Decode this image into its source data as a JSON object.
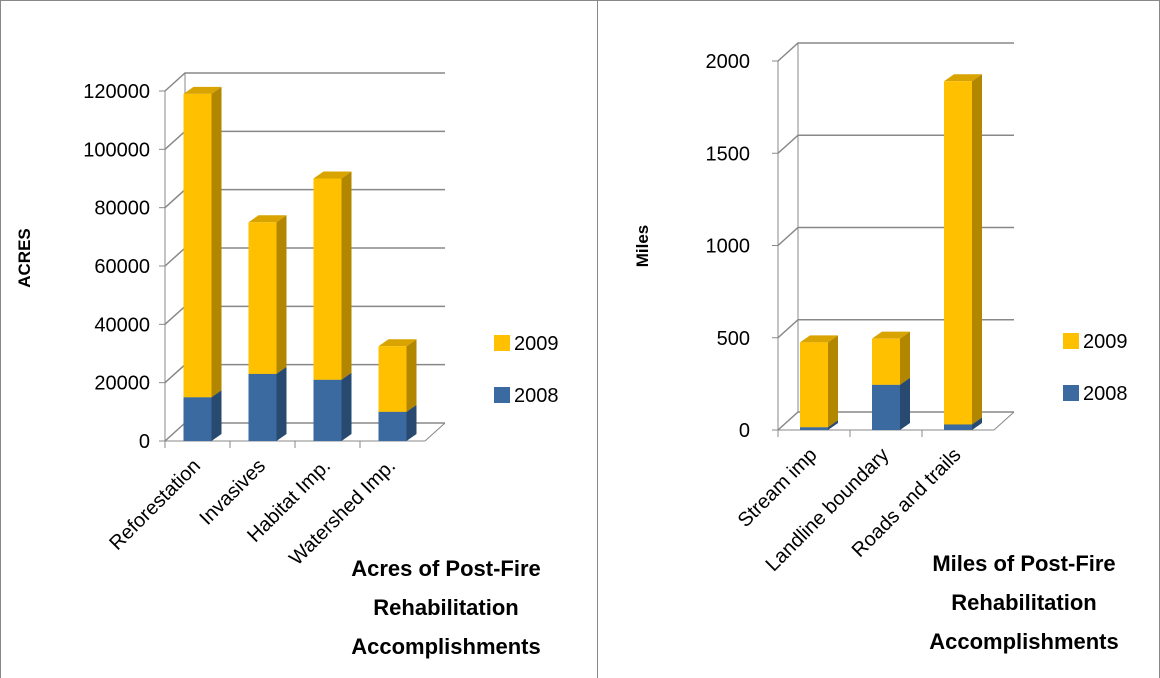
{
  "chart_data": [
    {
      "type": "bar",
      "stacked": true,
      "title": "Acres of Post-Fire Rehabilitation Accomplishments",
      "y_label": "ACRES",
      "categories": [
        "Reforestation",
        "Invasives",
        "Habitat Imp.",
        "Watershed Imp."
      ],
      "series": [
        {
          "name": "2008",
          "color": "#3a6aa0",
          "values": [
            15000,
            23000,
            21000,
            10000
          ]
        },
        {
          "name": "2009",
          "color": "#ffc000",
          "values": [
            104000,
            52000,
            69000,
            22500
          ]
        }
      ],
      "ylim": [
        0,
        120000
      ],
      "yticks": [
        0,
        20000,
        40000,
        60000,
        80000,
        100000,
        120000
      ],
      "grid": true
    },
    {
      "type": "bar",
      "stacked": true,
      "title": "Miles of Post-Fire Rehabilitation Accomplishments",
      "y_label": "Miles",
      "categories": [
        "Stream imp",
        "Landline boundary",
        "Roads and trails"
      ],
      "series": [
        {
          "name": "2008",
          "color": "#3a6aa0",
          "values": [
            15,
            245,
            30
          ]
        },
        {
          "name": "2009",
          "color": "#ffc000",
          "values": [
            460,
            250,
            1860
          ]
        }
      ],
      "ylim": [
        0,
        2000
      ],
      "yticks": [
        0,
        500,
        1000,
        1500,
        2000
      ],
      "grid": true
    }
  ]
}
